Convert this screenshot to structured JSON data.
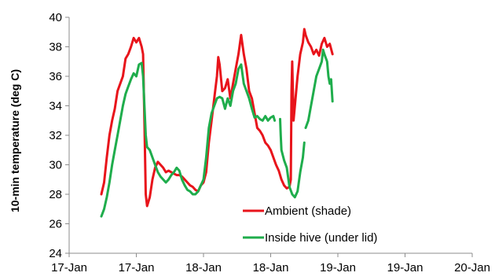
{
  "chart_data": {
    "type": "line",
    "title": "",
    "xlabel": "",
    "ylabel": "10-min temperature (deg C)",
    "x_unit": "days",
    "xlim": [
      0,
      3
    ],
    "ylim": [
      24,
      40
    ],
    "grid": false,
    "legend_position": "lower-right",
    "x_ticks": [
      {
        "x": 0.0,
        "label": "17-Jan"
      },
      {
        "x": 0.5,
        "label": "17-Jan"
      },
      {
        "x": 1.0,
        "label": "18-Jan"
      },
      {
        "x": 1.5,
        "label": "18-Jan"
      },
      {
        "x": 2.0,
        "label": "19-Jan"
      },
      {
        "x": 2.5,
        "label": "19-Jan"
      },
      {
        "x": 3.0,
        "label": "20-Jan"
      }
    ],
    "y_ticks": [
      {
        "y": 24,
        "label": "24"
      },
      {
        "y": 26,
        "label": "26"
      },
      {
        "y": 28,
        "label": "28"
      },
      {
        "y": 30,
        "label": "30"
      },
      {
        "y": 32,
        "label": "32"
      },
      {
        "y": 34,
        "label": "34"
      },
      {
        "y": 36,
        "label": "36"
      },
      {
        "y": 38,
        "label": "38"
      },
      {
        "y": 40,
        "label": "40"
      }
    ],
    "series": [
      {
        "name": "Ambient (shade)",
        "color": "#e8141b",
        "points": [
          [
            0.24,
            28.0
          ],
          [
            0.26,
            28.8
          ],
          [
            0.28,
            30.5
          ],
          [
            0.3,
            32.0
          ],
          [
            0.32,
            33.0
          ],
          [
            0.34,
            33.8
          ],
          [
            0.36,
            35.0
          ],
          [
            0.38,
            35.5
          ],
          [
            0.4,
            36.0
          ],
          [
            0.42,
            37.2
          ],
          [
            0.44,
            37.5
          ],
          [
            0.46,
            38.0
          ],
          [
            0.48,
            38.6
          ],
          [
            0.5,
            38.3
          ],
          [
            0.52,
            38.6
          ],
          [
            0.54,
            38.0
          ],
          [
            0.55,
            37.5
          ],
          [
            0.56,
            33.0
          ],
          [
            0.57,
            28.0
          ],
          [
            0.58,
            27.2
          ],
          [
            0.6,
            27.8
          ],
          [
            0.62,
            29.0
          ],
          [
            0.64,
            29.8
          ],
          [
            0.66,
            30.2
          ],
          [
            0.68,
            30.0
          ],
          [
            0.7,
            29.8
          ],
          [
            0.72,
            29.5
          ],
          [
            0.74,
            29.6
          ],
          [
            0.76,
            29.5
          ],
          [
            0.78,
            29.4
          ],
          [
            0.8,
            29.3
          ],
          [
            0.82,
            29.3
          ],
          [
            0.84,
            29.2
          ],
          [
            0.86,
            29.0
          ],
          [
            0.88,
            28.8
          ],
          [
            0.9,
            28.6
          ],
          [
            0.92,
            28.5
          ],
          [
            0.94,
            28.3
          ],
          [
            0.96,
            28.2
          ],
          [
            0.98,
            28.6
          ],
          [
            1.0,
            28.8
          ],
          [
            1.02,
            29.5
          ],
          [
            1.04,
            31.5
          ],
          [
            1.06,
            33.0
          ],
          [
            1.08,
            34.5
          ],
          [
            1.1,
            36.0
          ],
          [
            1.11,
            37.3
          ],
          [
            1.12,
            36.8
          ],
          [
            1.14,
            35.0
          ],
          [
            1.16,
            35.2
          ],
          [
            1.18,
            35.8
          ],
          [
            1.2,
            34.5
          ],
          [
            1.22,
            35.5
          ],
          [
            1.24,
            36.5
          ],
          [
            1.26,
            37.5
          ],
          [
            1.28,
            38.8
          ],
          [
            1.3,
            37.5
          ],
          [
            1.32,
            36.5
          ],
          [
            1.34,
            35.0
          ],
          [
            1.36,
            34.5
          ],
          [
            1.38,
            33.5
          ],
          [
            1.4,
            32.5
          ],
          [
            1.42,
            32.3
          ],
          [
            1.44,
            32.0
          ],
          [
            1.46,
            31.5
          ],
          [
            1.48,
            31.3
          ],
          [
            1.5,
            31.0
          ],
          [
            1.52,
            30.5
          ],
          [
            1.54,
            30.0
          ],
          [
            1.56,
            29.6
          ],
          [
            1.58,
            29.0
          ],
          [
            1.6,
            28.6
          ],
          [
            1.62,
            28.4
          ],
          [
            1.64,
            28.5
          ],
          [
            1.65,
            29.0
          ],
          [
            1.655,
            35.0
          ],
          [
            1.66,
            37.0
          ],
          [
            1.67,
            33.0
          ],
          [
            1.68,
            34.0
          ],
          [
            1.7,
            36.0
          ],
          [
            1.72,
            37.5
          ],
          [
            1.74,
            38.3
          ],
          [
            1.75,
            39.2
          ],
          [
            1.76,
            38.8
          ],
          [
            1.78,
            38.3
          ],
          [
            1.8,
            38.0
          ],
          [
            1.82,
            37.5
          ],
          [
            1.84,
            37.8
          ],
          [
            1.86,
            37.4
          ],
          [
            1.88,
            38.2
          ],
          [
            1.9,
            38.6
          ],
          [
            1.92,
            38.0
          ],
          [
            1.94,
            38.2
          ],
          [
            1.96,
            37.5
          ]
        ]
      },
      {
        "name": "Inside hive (under lid)",
        "color": "#1fad4c",
        "points": [
          [
            0.24,
            26.5
          ],
          [
            0.26,
            27.0
          ],
          [
            0.28,
            27.8
          ],
          [
            0.3,
            28.8
          ],
          [
            0.32,
            30.0
          ],
          [
            0.34,
            31.0
          ],
          [
            0.36,
            32.0
          ],
          [
            0.38,
            33.0
          ],
          [
            0.4,
            34.0
          ],
          [
            0.42,
            34.8
          ],
          [
            0.44,
            35.3
          ],
          [
            0.46,
            35.8
          ],
          [
            0.48,
            36.2
          ],
          [
            0.5,
            36.0
          ],
          [
            0.52,
            36.8
          ],
          [
            0.54,
            36.9
          ],
          [
            0.55,
            36.0
          ],
          [
            0.56,
            34.0
          ],
          [
            0.57,
            32.0
          ],
          [
            0.58,
            31.2
          ],
          [
            0.6,
            31.0
          ],
          [
            0.62,
            30.5
          ],
          [
            0.64,
            30.0
          ],
          [
            0.66,
            29.5
          ],
          [
            0.68,
            29.2
          ],
          [
            0.7,
            29.0
          ],
          [
            0.72,
            28.8
          ],
          [
            0.74,
            29.0
          ],
          [
            0.76,
            29.3
          ],
          [
            0.78,
            29.5
          ],
          [
            0.8,
            29.8
          ],
          [
            0.82,
            29.6
          ],
          [
            0.84,
            29.0
          ],
          [
            0.86,
            28.6
          ],
          [
            0.88,
            28.3
          ],
          [
            0.9,
            28.2
          ],
          [
            0.92,
            28.0
          ],
          [
            0.94,
            28.0
          ],
          [
            0.96,
            28.2
          ],
          [
            0.98,
            28.6
          ],
          [
            1.0,
            29.0
          ],
          [
            1.02,
            30.5
          ],
          [
            1.04,
            32.5
          ],
          [
            1.06,
            33.5
          ],
          [
            1.08,
            34.0
          ],
          [
            1.1,
            34.5
          ],
          [
            1.12,
            34.6
          ],
          [
            1.14,
            34.5
          ],
          [
            1.16,
            33.8
          ],
          [
            1.18,
            34.5
          ],
          [
            1.2,
            34.0
          ],
          [
            1.22,
            35.0
          ],
          [
            1.24,
            35.5
          ],
          [
            1.26,
            36.5
          ],
          [
            1.28,
            36.8
          ],
          [
            1.3,
            35.5
          ],
          [
            1.32,
            35.0
          ],
          [
            1.34,
            34.5
          ],
          [
            1.36,
            33.8
          ],
          [
            1.38,
            33.2
          ],
          [
            1.4,
            33.3
          ],
          [
            1.42,
            33.1
          ],
          [
            1.44,
            33.0
          ],
          [
            1.46,
            33.3
          ],
          [
            1.48,
            33.0
          ],
          [
            1.5,
            33.2
          ],
          [
            1.52,
            33.3
          ],
          [
            1.53,
            33.0
          ],
          null,
          [
            1.57,
            33.1
          ],
          [
            1.575,
            32.0
          ],
          [
            1.58,
            31.0
          ],
          [
            1.6,
            30.3
          ],
          [
            1.62,
            29.8
          ],
          [
            1.64,
            28.5
          ],
          [
            1.66,
            28.0
          ],
          [
            1.68,
            27.8
          ],
          [
            1.7,
            28.2
          ],
          [
            1.72,
            29.5
          ],
          [
            1.74,
            30.5
          ],
          [
            1.75,
            31.5
          ],
          null,
          [
            1.76,
            32.5
          ],
          [
            1.78,
            33.0
          ],
          [
            1.8,
            34.0
          ],
          [
            1.82,
            35.0
          ],
          [
            1.84,
            36.0
          ],
          [
            1.86,
            36.5
          ],
          [
            1.88,
            37.0
          ],
          [
            1.89,
            37.8
          ],
          [
            1.9,
            37.5
          ],
          [
            1.92,
            37.0
          ],
          [
            1.93,
            36.0
          ],
          [
            1.94,
            35.5
          ],
          [
            1.95,
            35.8
          ],
          [
            1.96,
            34.3
          ]
        ]
      }
    ]
  }
}
